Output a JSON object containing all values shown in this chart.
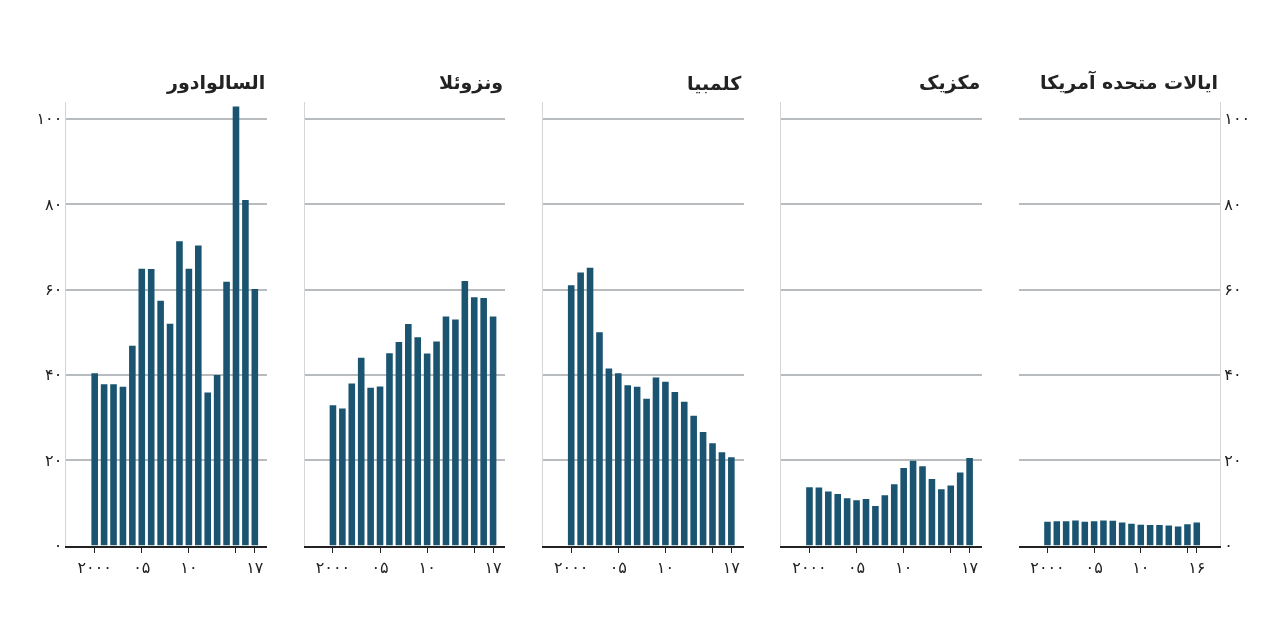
{
  "chart_data": [
    {
      "type": "bar",
      "title": "السالوادور",
      "x": [
        2000,
        2001,
        2002,
        2003,
        2004,
        2005,
        2006,
        2007,
        2008,
        2009,
        2010,
        2011,
        2012,
        2013,
        2014,
        2015,
        2016,
        2017
      ],
      "series": [
        {
          "color": "#1a5470",
          "values": [
            40.4,
            37.8,
            37.8,
            37.2,
            46.8,
            64.9,
            64.8,
            57.4,
            52.0,
            71.3,
            64.9,
            70.3,
            35.9,
            40.0,
            61.8,
            102.9,
            81.0,
            60.1
          ]
        }
      ],
      "xlim": [
        1997,
        2018.3
      ],
      "xticks": [
        {
          "value": 2000,
          "label": "۲۰۰۰"
        },
        {
          "value": 2005,
          "label": "۰۵"
        },
        {
          "value": 2010,
          "label": "۱۰"
        },
        {
          "value": 2015,
          "label": null
        },
        {
          "value": 2017,
          "label": "۱۷"
        }
      ],
      "ylim": [
        0,
        104
      ],
      "yticks": [
        {
          "value": 0,
          "label": "۰"
        },
        {
          "value": 20,
          "label": "۲۰"
        },
        {
          "value": 40,
          "label": "۴۰"
        },
        {
          "value": 60,
          "label": "۶۰"
        },
        {
          "value": 80,
          "label": "۸۰"
        },
        {
          "value": 100,
          "label": "۱۰۰"
        }
      ],
      "grid": "y"
    },
    {
      "type": "bar",
      "title": "ونزوئلا",
      "x": [
        2000,
        2001,
        2002,
        2003,
        2004,
        2005,
        2006,
        2007,
        2008,
        2009,
        2010,
        2011,
        2012,
        2013,
        2014,
        2015,
        2016,
        2017
      ],
      "series": [
        {
          "color": "#1a5470",
          "values": [
            32.9,
            32.1,
            38.0,
            44.0,
            37.0,
            37.3,
            45.1,
            47.7,
            51.9,
            48.8,
            45.0,
            47.8,
            53.7,
            53.0,
            62.0,
            58.2,
            58.0,
            53.7
          ]
        }
      ],
      "xlim": [
        1997,
        2018.3
      ],
      "xticks": [
        {
          "value": 2000,
          "label": "۲۰۰۰"
        },
        {
          "value": 2005,
          "label": "۰۵"
        },
        {
          "value": 2010,
          "label": "۱۰"
        },
        {
          "value": 2015,
          "label": null
        },
        {
          "value": 2017,
          "label": "۱۷"
        }
      ],
      "ylim": [
        0,
        104
      ],
      "yticks": [
        0,
        20,
        40,
        60,
        80,
        100
      ],
      "grid": "y",
      "tick_labels": "x"
    },
    {
      "type": "bar",
      "title": "کلمبیا",
      "x": [
        2000,
        2001,
        2002,
        2003,
        2004,
        2005,
        2006,
        2007,
        2008,
        2009,
        2010,
        2011,
        2012,
        2013,
        2014,
        2015,
        2016,
        2017
      ],
      "series": [
        {
          "color": "#1a5470",
          "values": [
            61.0,
            64.0,
            65.1,
            50.0,
            41.5,
            40.4,
            37.6,
            37.2,
            34.4,
            39.4,
            38.4,
            36.0,
            33.7,
            30.4,
            26.6,
            24.0,
            21.9,
            20.7
          ]
        }
      ],
      "xlim": [
        1997,
        2018.3
      ],
      "xticks": [
        {
          "value": 2000,
          "label": "۲۰۰۰"
        },
        {
          "value": 2005,
          "label": "۰۵"
        },
        {
          "value": 2010,
          "label": "۱۰"
        },
        {
          "value": 2015,
          "label": null
        },
        {
          "value": 2017,
          "label": "۱۷"
        }
      ],
      "ylim": [
        0,
        104
      ],
      "yticks": [
        0,
        20,
        40,
        60,
        80,
        100
      ],
      "grid": "y",
      "tick_labels": "x"
    },
    {
      "type": "bar",
      "title": "مکزیک",
      "x": [
        2000,
        2001,
        2002,
        2003,
        2004,
        2005,
        2006,
        2007,
        2008,
        2009,
        2010,
        2011,
        2012,
        2013,
        2014,
        2015,
        2016,
        2017
      ],
      "series": [
        {
          "color": "#1a5470",
          "values": [
            13.7,
            13.6,
            12.7,
            12.1,
            11.1,
            10.6,
            10.9,
            9.3,
            11.8,
            14.4,
            18.2,
            19.9,
            18.6,
            15.6,
            13.2,
            14.1,
            17.1,
            20.5
          ]
        }
      ],
      "xlim": [
        1997,
        2018.3
      ],
      "xticks": [
        {
          "value": 2000,
          "label": "۲۰۰۰"
        },
        {
          "value": 2005,
          "label": "۰۵"
        },
        {
          "value": 2010,
          "label": "۱۰"
        },
        {
          "value": 2015,
          "label": null
        },
        {
          "value": 2017,
          "label": "۱۷"
        }
      ],
      "ylim": [
        0,
        104
      ],
      "yticks": [
        0,
        20,
        40,
        60,
        80,
        100
      ],
      "grid": "y",
      "tick_labels": "x"
    },
    {
      "type": "bar",
      "title": "ایالات متحده آمریکا",
      "x": [
        2000,
        2001,
        2002,
        2003,
        2004,
        2005,
        2006,
        2007,
        2008,
        2009,
        2010,
        2011,
        2012,
        2013,
        2014,
        2015,
        2016
      ],
      "series": [
        {
          "color": "#1a5470",
          "values": [
            5.6,
            5.7,
            5.7,
            5.9,
            5.6,
            5.7,
            5.9,
            5.8,
            5.4,
            5.1,
            4.9,
            4.8,
            4.8,
            4.7,
            4.5,
            5.0,
            5.4
          ]
        }
      ],
      "xlim": [
        1997,
        2018.5
      ],
      "xticks": [
        {
          "value": 2000,
          "label": "۲۰۰۰"
        },
        {
          "value": 2005,
          "label": "۰۵"
        },
        {
          "value": 2010,
          "label": "۱۰"
        },
        {
          "value": 2015,
          "label": null
        },
        {
          "value": 2016,
          "label": "۱۶"
        }
      ],
      "ylim": [
        0,
        104
      ],
      "yticks": [
        {
          "value": 0,
          "label": "۰"
        },
        {
          "value": 20,
          "label": "۲۰"
        },
        {
          "value": 40,
          "label": "۴۰"
        },
        {
          "value": 60,
          "label": "۶۰"
        },
        {
          "value": 80,
          "label": "۸۰"
        },
        {
          "value": 100,
          "label": "۱۰۰"
        }
      ],
      "grid": "y"
    }
  ]
}
